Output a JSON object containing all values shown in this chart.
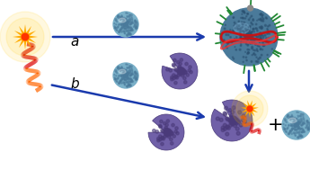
{
  "bg_color": "#ffffff",
  "arrow_color": "#1a3aad",
  "label_a": "a",
  "label_b": "b",
  "plus_sign": "+",
  "figsize": [
    3.45,
    1.89
  ],
  "dpi": 100,
  "sphere_base": "#7ab0c8",
  "sphere_dot": "#4a7a9b",
  "thrombin_base": "#7060a8",
  "thrombin_dot": "#4a3a7a"
}
